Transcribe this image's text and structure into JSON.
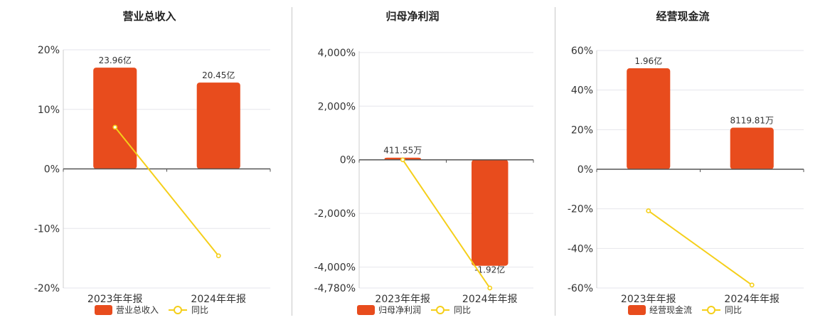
{
  "legend_yoy_label": "同比",
  "colors": {
    "bar": "#e84c1d",
    "line": "#f5cf1a",
    "grid": "#e6e6ec",
    "axis": "#555555",
    "text": "#333333"
  },
  "chart_data": [
    {
      "type": "bar",
      "title": "营业总收入",
      "categories": [
        "2023年年报",
        "2024年年报"
      ],
      "series": [
        {
          "name": "营业总收入",
          "type": "bar",
          "values": [
            17.0,
            14.5
          ],
          "labels": [
            "23.96亿",
            "20.45亿"
          ]
        },
        {
          "name": "同比",
          "type": "line",
          "values": [
            7.0,
            -14.6
          ]
        }
      ],
      "yticks": [
        20,
        10,
        0,
        -10,
        -20
      ],
      "ytick_labels": [
        "20%",
        "10%",
        "0%",
        "-10%",
        "-20%"
      ],
      "ylim": [
        -20,
        20
      ],
      "grid": true,
      "legend_position": "bottom"
    },
    {
      "type": "bar",
      "title": "归母净利润",
      "categories": [
        "2023年年报",
        "2024年年报"
      ],
      "series": [
        {
          "name": "归母净利润",
          "type": "bar",
          "values": [
            80,
            -3950
          ],
          "labels": [
            "411.55万",
            "-1.92亿"
          ]
        },
        {
          "name": "同比",
          "type": "line",
          "values": [
            0,
            -4780
          ]
        }
      ],
      "yticks": [
        4000,
        2000,
        0,
        -2000,
        -4000,
        -4780
      ],
      "ytick_labels": [
        "4,000%",
        "2,000%",
        "0%",
        "-2,000%",
        "-4,000%",
        "-4,780%"
      ],
      "ylim": [
        -4780,
        4050
      ],
      "grid": true,
      "legend_position": "bottom"
    },
    {
      "type": "bar",
      "title": "经营现金流",
      "categories": [
        "2023年年报",
        "2024年年报"
      ],
      "series": [
        {
          "name": "经营现金流",
          "type": "bar",
          "values": [
            51,
            21
          ],
          "labels": [
            "1.96亿",
            "8119.81万"
          ]
        },
        {
          "name": "同比",
          "type": "line",
          "values": [
            -21,
            -58.5
          ]
        }
      ],
      "yticks": [
        60,
        40,
        20,
        0,
        -20,
        -40,
        -60
      ],
      "ytick_labels": [
        "60%",
        "40%",
        "20%",
        "0%",
        "-20%",
        "-40%",
        "-60%"
      ],
      "ylim": [
        -60,
        60
      ],
      "grid": true,
      "legend_position": "bottom"
    }
  ]
}
